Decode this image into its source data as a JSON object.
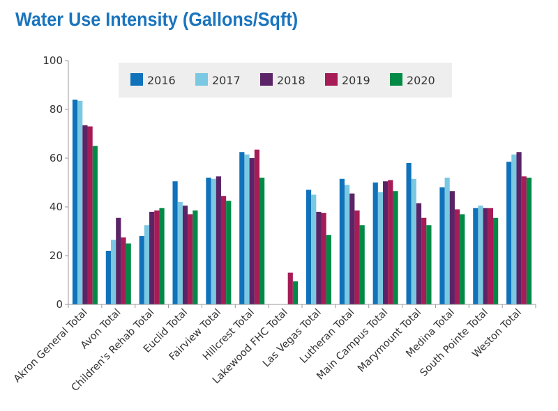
{
  "chart_data": {
    "type": "bar",
    "title": "Water Use Intensity (Gallons/Sqft)",
    "xlabel": "",
    "ylabel": "",
    "ylim": [
      0,
      100
    ],
    "yticks": [
      0,
      20,
      40,
      60,
      80,
      100
    ],
    "grid": false,
    "legend_position": "top",
    "categories": [
      "Akron General Total",
      "Avon Total",
      "Children's Rehab Total",
      "Euclid Total",
      "Fairview Total",
      "Hillcrest Total",
      "Lakewood FHC Total",
      "Las Vegas Total",
      "Lutheran Total",
      "Main Campus Total",
      "Marymount Total",
      "Medina Total",
      "South Pointe Total",
      "Weston Total"
    ],
    "series": [
      {
        "name": "2016",
        "color": "#0f72ba",
        "values": [
          84,
          22,
          28,
          50.5,
          52,
          62.5,
          null,
          47,
          51.5,
          50,
          58,
          48,
          39.5,
          58.5
        ]
      },
      {
        "name": "2017",
        "color": "#7bc8e2",
        "values": [
          83.5,
          26.5,
          32.5,
          42,
          51.5,
          61.5,
          null,
          45,
          49,
          46,
          51.5,
          52,
          40.5,
          61.5
        ]
      },
      {
        "name": "2018",
        "color": "#5a2466",
        "values": [
          73.5,
          35.5,
          38,
          40.5,
          52.5,
          60,
          null,
          38,
          45.5,
          50.5,
          41.5,
          46.5,
          39.5,
          62.5
        ]
      },
      {
        "name": "2019",
        "color": "#a61c56",
        "values": [
          73,
          27.5,
          38.5,
          37,
          44.5,
          63.5,
          13,
          37.5,
          38.5,
          51,
          35.5,
          39,
          39.5,
          52.5
        ]
      },
      {
        "name": "2020",
        "color": "#008a45",
        "values": [
          65,
          25,
          39.5,
          38.5,
          42.5,
          52,
          9.5,
          28.5,
          32.5,
          46.5,
          32.5,
          37,
          35.5,
          52
        ]
      }
    ]
  }
}
